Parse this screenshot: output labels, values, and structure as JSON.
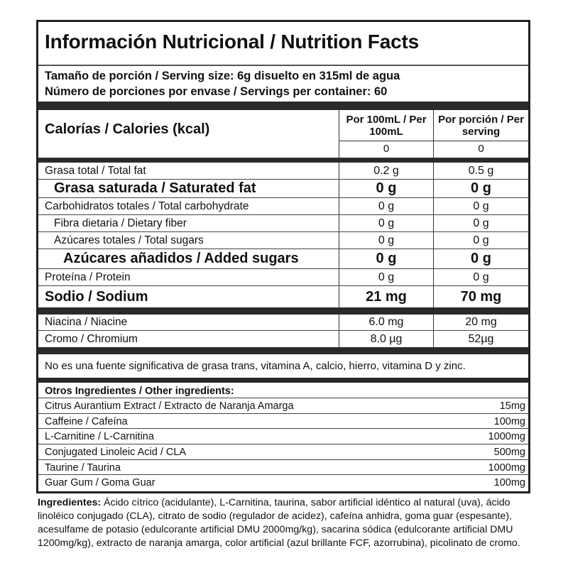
{
  "title": "Información Nutricional / Nutrition Facts",
  "serving_size": "Tamaño de porción / Serving size: 6g disuelto en 315ml de agua",
  "servings_per_container": "Número de porciones por envase / Servings per container: 60",
  "calories": {
    "label": "Calorías / Calories (kcal)",
    "col1_header": "Por 100mL / Per 100mL",
    "col2_header": "Por porción / Per serving",
    "col1_value": "0",
    "col2_value": "0"
  },
  "nutrients": [
    {
      "name": "Grasa total / Total fat",
      "per100": "0.2 g",
      "serving": "0.5 g",
      "style": "normal"
    },
    {
      "name": "Grasa saturada / Saturated fat",
      "per100": "0 g",
      "serving": "0 g",
      "style": "big",
      "indent": 1
    },
    {
      "name": "Carbohidratos totales / Total carbohydrate",
      "per100": "0 g",
      "serving": "0 g",
      "style": "normal"
    },
    {
      "name": "Fibra dietaria / Dietary fiber",
      "per100": "0 g",
      "serving": "0 g",
      "style": "normal",
      "indent": 1
    },
    {
      "name": "Azúcares totales / Total sugars",
      "per100": "0 g",
      "serving": "0 g",
      "style": "normal",
      "indent": 1
    },
    {
      "name": "Azúcares añadidos / Added sugars",
      "per100": "0 g",
      "serving": "0 g",
      "style": "big",
      "indent": 2
    },
    {
      "name": "Proteína / Protein",
      "per100": "0 g",
      "serving": "0 g",
      "style": "normal"
    },
    {
      "name": "Sodio / Sodium",
      "per100": "21 mg",
      "serving": "70 mg",
      "style": "big"
    }
  ],
  "vitamins": [
    {
      "name": "Niacina / Niacine",
      "per100": "6.0 mg",
      "serving": "20 mg"
    },
    {
      "name": "Cromo / Chromium",
      "per100": "8.0 µg",
      "serving": "52µg"
    }
  ],
  "note": "No es una fuente significativa de grasa trans, vitamina A, calcio, hierro, vitamina D y zinc.",
  "other_ingredients": {
    "header": "Otros Ingredientes / Other ingredients:",
    "items": [
      {
        "name": "Citrus Aurantium Extract / Extracto de Naranja Amarga",
        "amount": "15mg"
      },
      {
        "name": "Caffeine / Cafeína",
        "amount": "100mg"
      },
      {
        "name": "L-Carnitine / L-Carnitina",
        "amount": "1000mg"
      },
      {
        "name": "Conjugated Linoleic Acid / CLA",
        "amount": "500mg"
      },
      {
        "name": "Taurine / Taurina",
        "amount": "1000mg"
      },
      {
        "name": "Guar Gum / Goma Guar",
        "amount": "100mg"
      }
    ]
  },
  "ingredients": {
    "label": "Ingredientes:",
    "text": " Ácido cítrico (acidulante), L-Carnitina, taurina, sabor artificial idéntico al natural (uva), ácido linoléico conjugado (CLA), citrato de sodio (regulador de acidez), cafeína anhidra, goma guar (espesante), acesulfame de potasio (edulcorante artificial DMU 2000mg/kg), sacarina sódica (edulcorante artificial DMU 1200mg/kg), extracto de naranja amarga, color artificial (azul brillante FCF, azorrubina), picolinato de cromo."
  }
}
